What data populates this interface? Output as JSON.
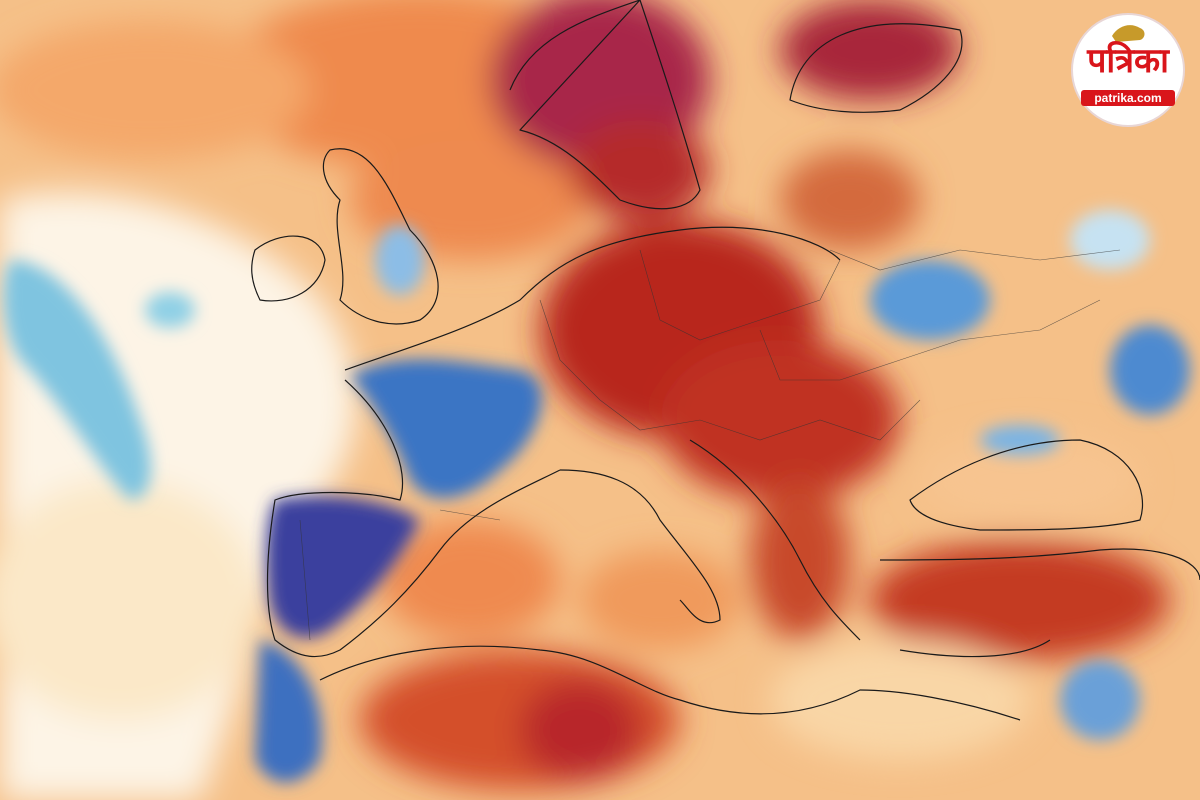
{
  "logo": {
    "name": "पत्रिका",
    "url": "patrika.com"
  }
}
